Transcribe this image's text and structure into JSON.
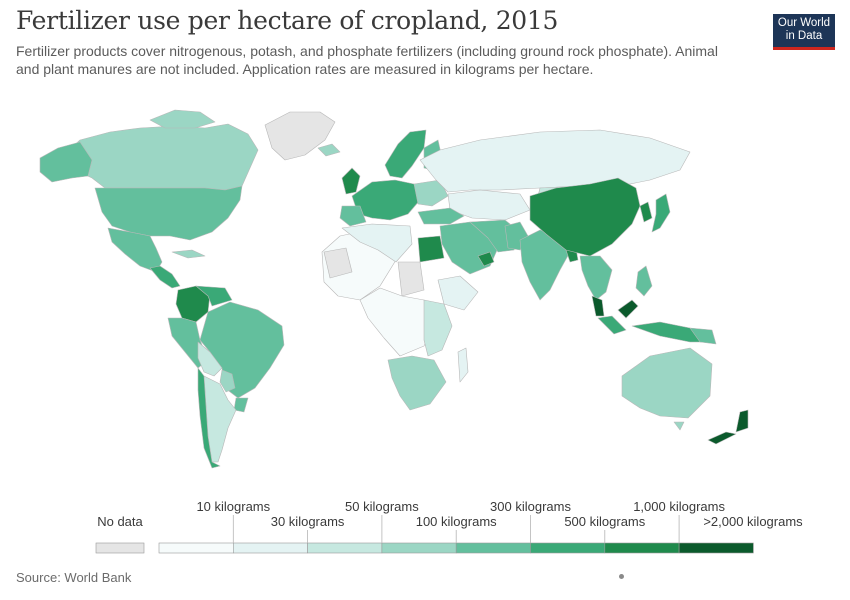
{
  "header": {
    "title": "Fertilizer use per hectare of cropland, 2015",
    "subtitle": "Fertilizer products cover nitrogenous, potash, and phosphate fertilizers (including ground rock phosphate). Animal and plant manures are not included. Application rates are measured in kilograms per hectare."
  },
  "logo": {
    "line1": "Our World",
    "line2": "in Data"
  },
  "colors": {
    "no_data": "#e5e5e5",
    "ocean": "#ffffff",
    "border": "#b8b8b8",
    "bins": [
      "#f6fbfb",
      "#e4f3f3",
      "#c6e8e0",
      "#9bd6c4",
      "#63bf9d",
      "#3aa977",
      "#1f8a4c",
      "#0b5a2c"
    ]
  },
  "legend": {
    "no_data_label": "No data",
    "labels": [
      "10 kilograms",
      "30 kilograms",
      "50 kilograms",
      "100 kilograms",
      "300 kilograms",
      "500 kilograms",
      "1,000 kilograms",
      ">2,000 kilograms"
    ]
  },
  "source": "Source: World Bank"
}
